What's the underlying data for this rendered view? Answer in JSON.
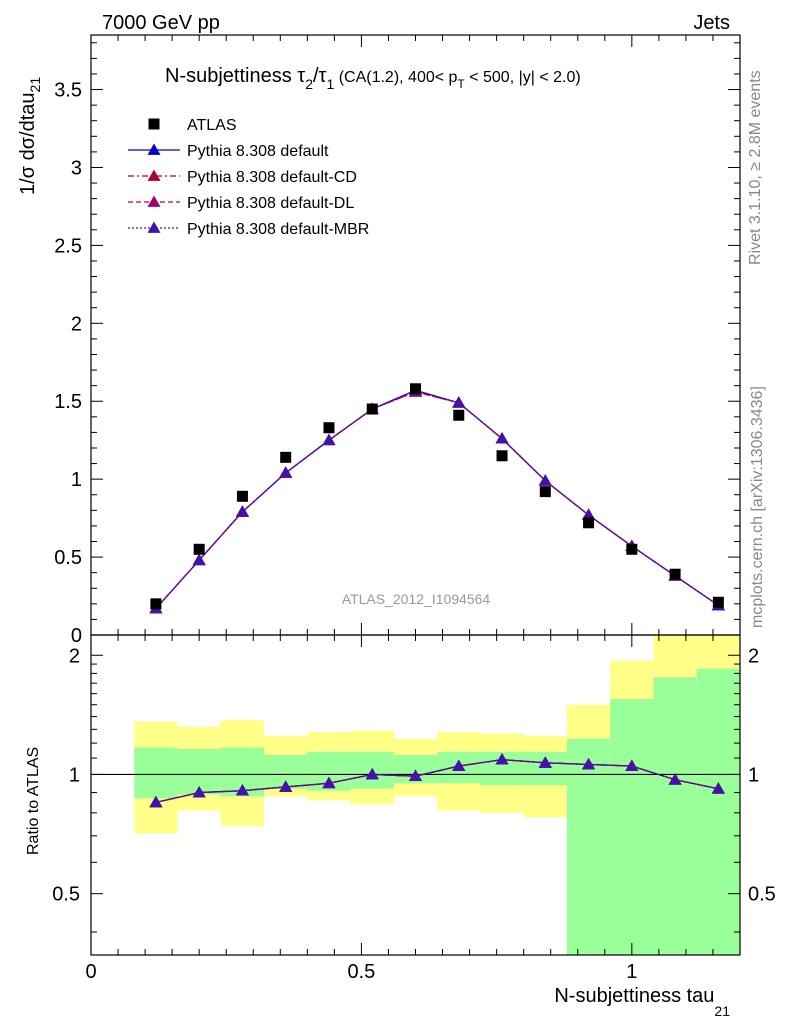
{
  "header": {
    "left": "7000 GeV pp",
    "right": "Jets"
  },
  "side_labels": {
    "rivet": "Rivet 3.1.10, ≥ 2.8M events",
    "mcplots": "mcplots.cern.ch [arXiv:1306.3436]"
  },
  "colors": {
    "data": "#000000",
    "default": "#0000cc",
    "cd": "#aa0033",
    "dl": "#aa0066",
    "mbr": "#4411aa",
    "band_inner": "#99ff99",
    "band_outer": "#ffff88",
    "watermark": "#999999"
  },
  "chart_data": {
    "type": "line",
    "title_main": "N-subjettiness τ",
    "title_sub1": "2",
    "title_slash": "/τ",
    "title_sub2": "1",
    "title_cuts": " (CA(1.2), 400< p",
    "title_cuts_sub": "T",
    "title_tail": " < 500, |y| < 2.0)",
    "watermark": "ATLAS_2012_I1094564",
    "xlabel": "N-subjettiness tau",
    "xlabel_sub": "21",
    "ylabel": "1/σ dσ/dtau",
    "ylabel_sub": "21",
    "ratio_ylabel": "Ratio to ATLAS",
    "xlim": [
      0,
      1.2
    ],
    "ylim": [
      0,
      3.85
    ],
    "ratio_ylim": [
      0.35,
      2.25
    ],
    "x_ticks": [
      {
        "v": 0,
        "label": "0"
      },
      {
        "v": 0.5,
        "label": "0.5"
      },
      {
        "v": 1,
        "label": "1"
      }
    ],
    "y_ticks": [
      {
        "v": 0,
        "label": "0"
      },
      {
        "v": 0.5,
        "label": "0.5"
      },
      {
        "v": 1,
        "label": "1"
      },
      {
        "v": 1.5,
        "label": "1.5"
      },
      {
        "v": 2,
        "label": "2"
      },
      {
        "v": 2.5,
        "label": "2.5"
      },
      {
        "v": 3,
        "label": "3"
      },
      {
        "v": 3.5,
        "label": "3.5"
      }
    ],
    "ratio_ticks": [
      {
        "v": 0.5,
        "label": "0.5"
      },
      {
        "v": 1,
        "label": "1"
      },
      {
        "v": 2,
        "label": "2"
      }
    ],
    "bin_edges": [
      0.08,
      0.16,
      0.24,
      0.32,
      0.4,
      0.48,
      0.56,
      0.64,
      0.72,
      0.8,
      0.88,
      0.96,
      1.04,
      1.12,
      1.2
    ],
    "x": [
      0.12,
      0.2,
      0.28,
      0.36,
      0.44,
      0.52,
      0.6,
      0.68,
      0.76,
      0.84,
      0.92,
      1.0,
      1.08,
      1.16
    ],
    "data": {
      "name": "ATLAS",
      "values": [
        0.2,
        0.55,
        0.89,
        1.14,
        1.33,
        1.45,
        1.58,
        1.41,
        1.15,
        0.92,
        0.72,
        0.55,
        0.39,
        0.21
      ]
    },
    "series": [
      {
        "name": "Pythia 8.308 default",
        "key": "default",
        "dash": "",
        "values": [
          0.17,
          0.48,
          0.79,
          1.04,
          1.25,
          1.45,
          1.57,
          1.49,
          1.26,
          0.99,
          0.77,
          0.57,
          0.38,
          0.19
        ]
      },
      {
        "name": "Pythia 8.308 default-CD",
        "key": "cd",
        "dash": "6,3,2,3",
        "values": [
          0.17,
          0.48,
          0.79,
          1.04,
          1.25,
          1.45,
          1.56,
          1.49,
          1.26,
          0.99,
          0.77,
          0.57,
          0.38,
          0.19
        ]
      },
      {
        "name": "Pythia 8.308 default-DL",
        "key": "dl",
        "dash": "5,3",
        "values": [
          0.17,
          0.48,
          0.79,
          1.04,
          1.25,
          1.45,
          1.56,
          1.49,
          1.26,
          0.99,
          0.77,
          0.57,
          0.38,
          0.19
        ]
      },
      {
        "name": "Pythia 8.308 default-MBR",
        "key": "mbr",
        "dash": "2,2",
        "values": [
          0.17,
          0.48,
          0.79,
          1.04,
          1.25,
          1.45,
          1.57,
          1.49,
          1.26,
          0.99,
          0.77,
          0.57,
          0.38,
          0.19
        ]
      }
    ],
    "ratio": {
      "values": [
        0.85,
        0.9,
        0.91,
        0.93,
        0.95,
        1.0,
        0.99,
        1.05,
        1.09,
        1.07,
        1.06,
        1.05,
        0.97,
        0.92
      ],
      "band_inner_lo": [
        0.87,
        0.89,
        0.88,
        0.92,
        0.91,
        0.92,
        0.95,
        0.95,
        0.94,
        0.94,
        0.35,
        0.35,
        0.35,
        0.35
      ],
      "band_inner_hi": [
        1.17,
        1.16,
        1.17,
        1.12,
        1.14,
        1.14,
        1.12,
        1.14,
        1.14,
        1.14,
        1.23,
        1.55,
        1.76,
        1.85
      ],
      "band_outer_lo": [
        0.71,
        0.81,
        0.74,
        0.88,
        0.86,
        0.84,
        0.88,
        0.81,
        0.8,
        0.78,
        0.35,
        0.35,
        0.35,
        0.35
      ],
      "band_outer_hi": [
        1.36,
        1.32,
        1.37,
        1.25,
        1.28,
        1.29,
        1.23,
        1.28,
        1.27,
        1.25,
        1.5,
        1.94,
        2.25,
        2.25
      ]
    }
  }
}
